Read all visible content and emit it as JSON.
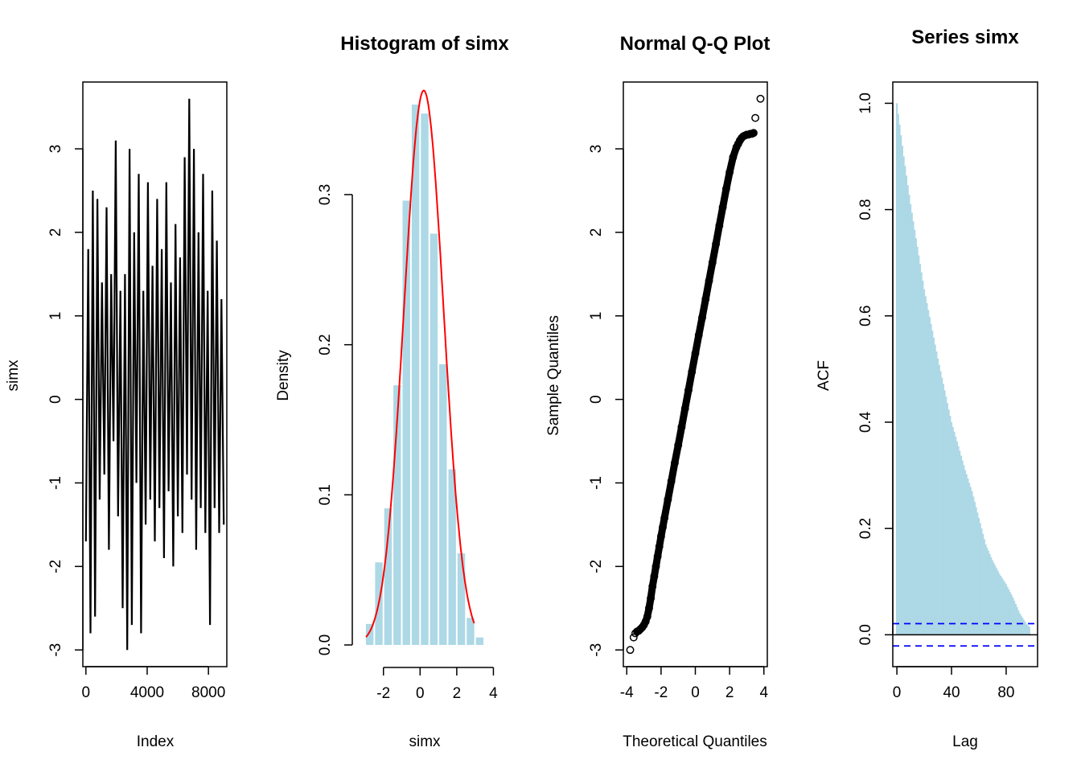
{
  "colors": {
    "bars": "#add8e6",
    "density_curve": "#ff0000",
    "series_line": "#000000",
    "ci_lines": "#0000ff",
    "points": "#000000"
  },
  "chart_data": [
    {
      "type": "line",
      "title": "",
      "xlabel": "Index",
      "ylabel": "simx",
      "xlim": [
        -200,
        9200
      ],
      "ylim": [
        -3.2,
        3.8
      ],
      "x_ticks": [
        0,
        4000,
        8000
      ],
      "y_ticks": [
        -3,
        -2,
        -1,
        0,
        1,
        2,
        3
      ],
      "series": [
        {
          "x": [
            0,
            150,
            300,
            450,
            600,
            750,
            900,
            1050,
            1200,
            1350,
            1500,
            1650,
            1800,
            1950,
            2100,
            2250,
            2400,
            2550,
            2700,
            2850,
            3000,
            3150,
            3300,
            3450,
            3600,
            3750,
            3900,
            4050,
            4200,
            4350,
            4500,
            4650,
            4800,
            4950,
            5100,
            5250,
            5400,
            5550,
            5700,
            5850,
            6000,
            6150,
            6300,
            6450,
            6600,
            6750,
            6900,
            7050,
            7200,
            7350,
            7500,
            7650,
            7800,
            7950,
            8100,
            8250,
            8400,
            8550,
            8700,
            8850,
            9000
          ],
          "y": [
            -1.7,
            1.8,
            -2.8,
            2.5,
            -2.6,
            2.4,
            -1.2,
            1.4,
            -0.9,
            2.3,
            -1.8,
            1.5,
            -0.5,
            3.1,
            -1.4,
            1.3,
            -2.5,
            1.5,
            -3.0,
            3.0,
            -2.7,
            2.0,
            -1.0,
            2.7,
            -2.8,
            1.3,
            -1.5,
            2.6,
            -1.2,
            1.6,
            -1.7,
            2.4,
            -1.3,
            1.8,
            -1.9,
            2.6,
            -1.1,
            1.4,
            -2.0,
            2.1,
            -1.4,
            1.7,
            -1.6,
            2.9,
            -0.9,
            3.6,
            -1.2,
            3.0,
            -1.8,
            2.0,
            -1.3,
            2.7,
            -1.6,
            1.3,
            -2.7,
            2.5,
            -1.3,
            1.9,
            -1.6,
            1.2,
            -1.5
          ]
        }
      ]
    },
    {
      "type": "bar",
      "title": "Histogram of simx",
      "xlabel": "simx",
      "ylabel": "Density",
      "xlim": [
        -3.7,
        4.2
      ],
      "ylim": [
        0,
        0.375
      ],
      "x_ticks": [
        -2,
        0,
        2,
        4
      ],
      "y_ticks": [
        0.0,
        0.1,
        0.2,
        0.3
      ],
      "bin_edges": [
        -3.0,
        -2.5,
        -2.0,
        -1.5,
        -1.0,
        -0.5,
        0.0,
        0.5,
        1.0,
        1.5,
        2.0,
        2.5,
        3.0,
        3.5
      ],
      "values": [
        0.014,
        0.055,
        0.091,
        0.173,
        0.296,
        0.36,
        0.354,
        0.274,
        0.187,
        0.117,
        0.061,
        0.018,
        0.005
      ],
      "density_curve": {
        "name": "normal density",
        "mean": 0.2,
        "sd": 1.08
      }
    },
    {
      "type": "scatter",
      "title": "Normal Q-Q Plot",
      "xlabel": "Theoretical Quantiles",
      "ylabel": "Sample Quantiles",
      "xlim": [
        -4.2,
        4.2
      ],
      "ylim": [
        -3.2,
        3.8
      ],
      "x_ticks": [
        -4,
        -2,
        0,
        2,
        4
      ],
      "y_ticks": [
        -3,
        -2,
        -1,
        0,
        1,
        2,
        3
      ],
      "points_x": [
        -3.8,
        -3.6,
        -3.5,
        -3.4,
        -3.3,
        -3.2,
        -3.1,
        -3.0,
        -2.9,
        -2.8,
        -2.7,
        -2.6,
        -2.5,
        -2.4,
        -2.3,
        -2.2,
        -2.1,
        -2.0,
        -1.9,
        -1.8,
        -1.6,
        -1.4,
        -1.2,
        -1.0,
        -0.8,
        -0.6,
        -0.4,
        -0.2,
        0.0,
        0.2,
        0.4,
        0.6,
        0.8,
        1.0,
        1.2,
        1.4,
        1.6,
        1.8,
        2.0,
        2.2,
        2.4,
        2.5,
        2.6,
        2.7,
        2.8,
        2.9,
        3.0,
        3.1,
        3.2,
        3.3,
        3.4,
        3.5,
        3.8
      ],
      "points_y": [
        -3.0,
        -2.85,
        -2.8,
        -2.78,
        -2.77,
        -2.75,
        -2.73,
        -2.7,
        -2.66,
        -2.6,
        -2.5,
        -2.38,
        -2.24,
        -2.12,
        -2.0,
        -1.88,
        -1.76,
        -1.64,
        -1.53,
        -1.42,
        -1.2,
        -0.98,
        -0.76,
        -0.55,
        -0.33,
        -0.11,
        0.11,
        0.33,
        0.55,
        0.77,
        0.98,
        1.2,
        1.42,
        1.64,
        1.86,
        2.08,
        2.3,
        2.52,
        2.72,
        2.9,
        3.02,
        3.06,
        3.1,
        3.13,
        3.15,
        3.16,
        3.17,
        3.17,
        3.18,
        3.18,
        3.19,
        3.37,
        3.6
      ]
    },
    {
      "type": "bar",
      "title": "Series  simx",
      "xlabel": "Lag",
      "ylabel": "ACF",
      "xlim": [
        -3,
        103
      ],
      "ylim": [
        -0.06,
        1.04
      ],
      "x_ticks": [
        0,
        40,
        80
      ],
      "y_ticks": [
        0.0,
        0.2,
        0.4,
        0.6,
        0.8,
        1.0
      ],
      "lags_max": 97,
      "acf_profile": {
        "lags": [
          0,
          1,
          2,
          5,
          10,
          20,
          30,
          40,
          50,
          55,
          60,
          65,
          70,
          75,
          80,
          85,
          90,
          95,
          97
        ],
        "values": [
          1.0,
          0.98,
          0.96,
          0.9,
          0.81,
          0.65,
          0.52,
          0.4,
          0.31,
          0.27,
          0.22,
          0.17,
          0.14,
          0.115,
          0.095,
          0.07,
          0.04,
          0.02,
          0.015
        ]
      },
      "ci": 0.021
    }
  ]
}
